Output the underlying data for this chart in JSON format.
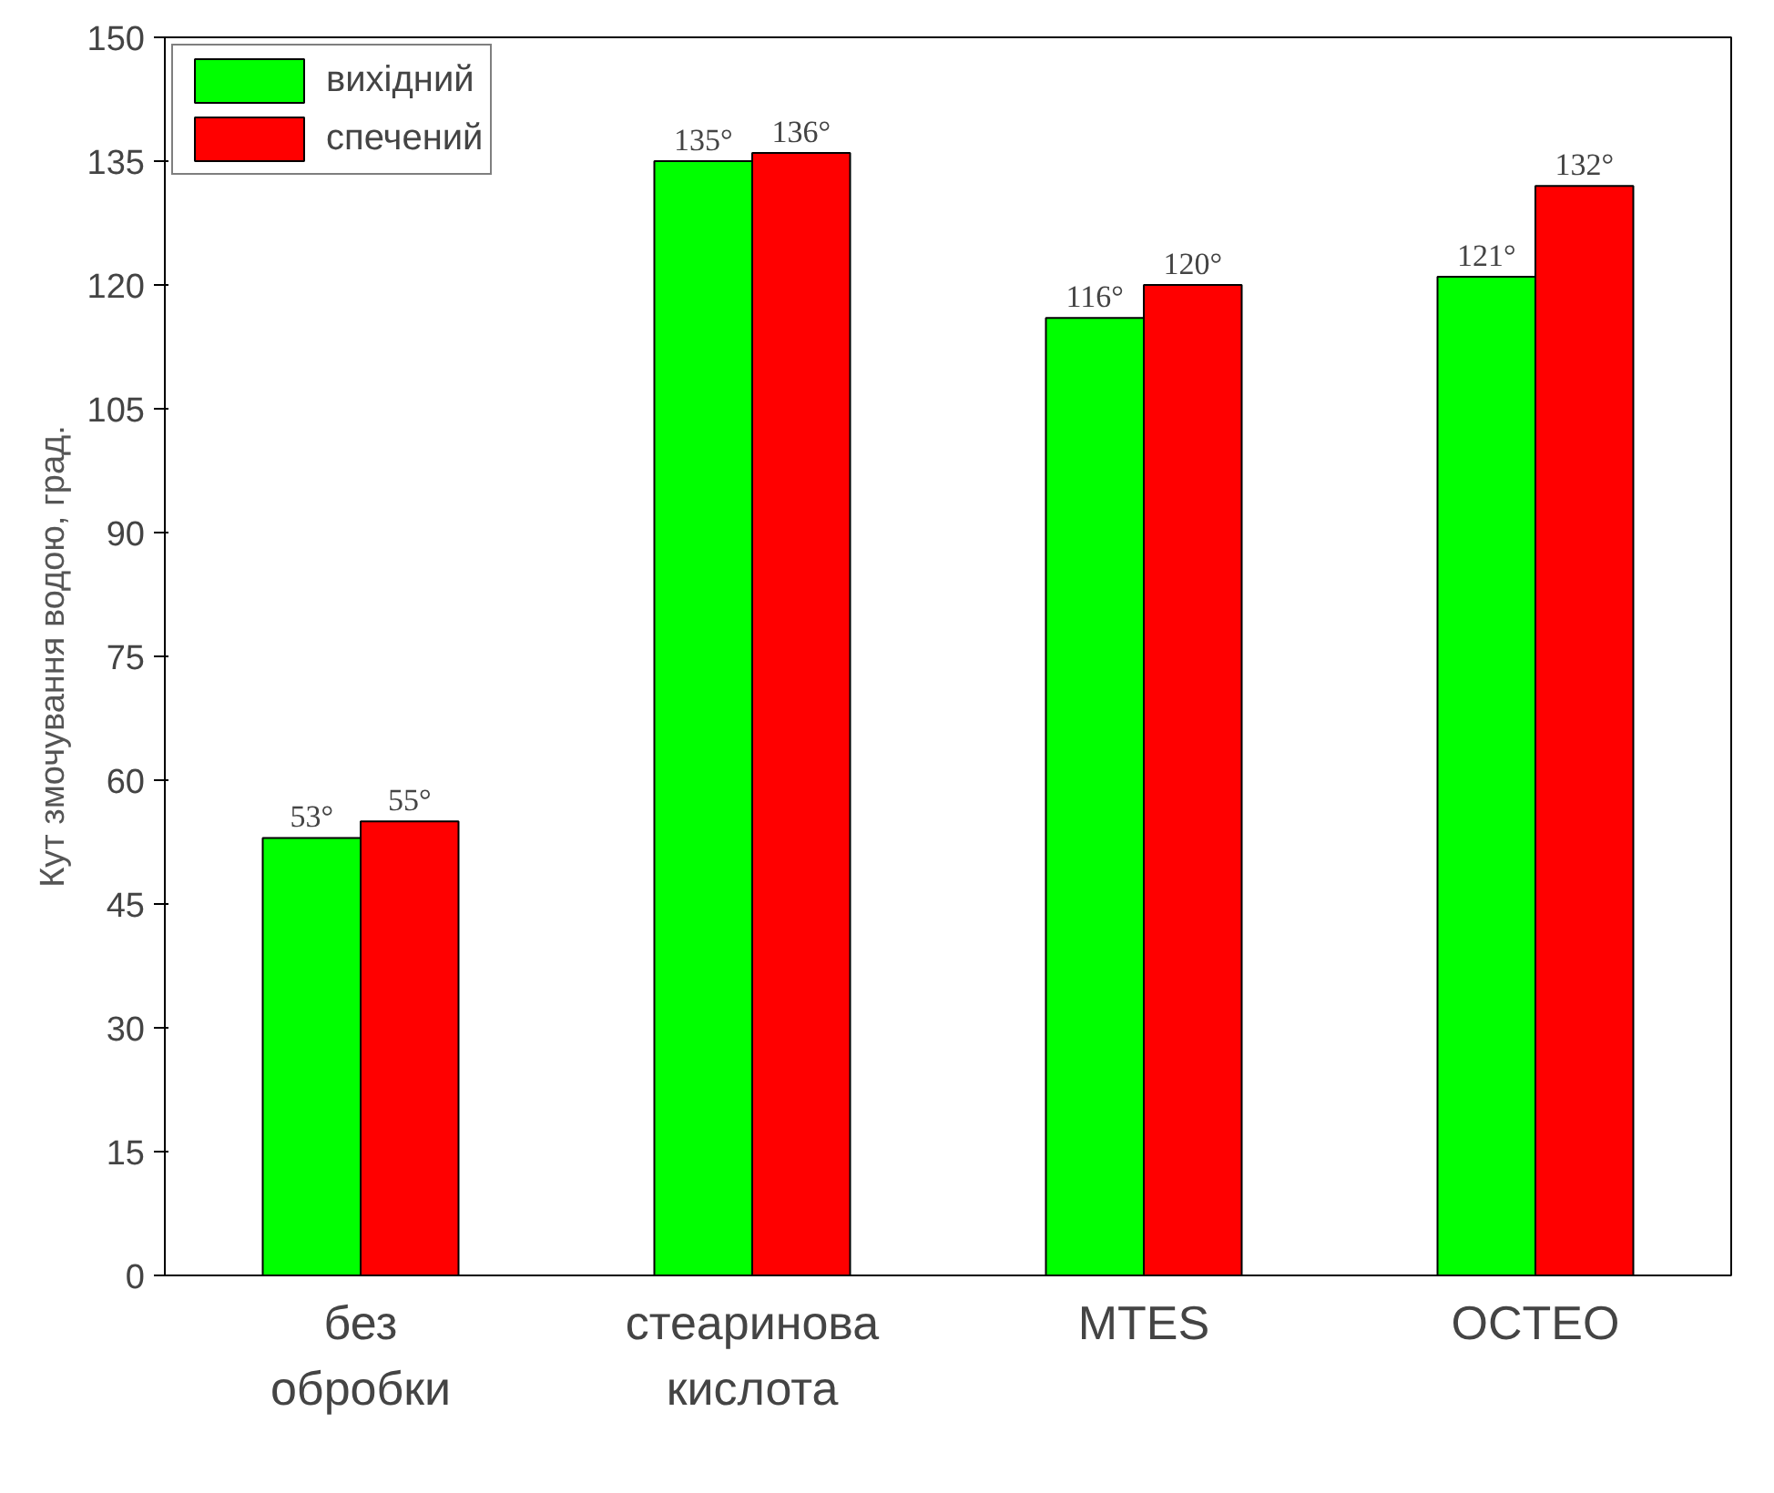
{
  "chart_data": {
    "type": "bar",
    "categories": [
      "без обробки",
      "стеаринова кислота",
      "MTES",
      "OCTEO"
    ],
    "ylabel": "Кут змочування водою, град.",
    "ylim": [
      0,
      150
    ],
    "yticks": [
      0,
      15,
      30,
      45,
      60,
      75,
      90,
      105,
      120,
      135,
      150
    ],
    "series": [
      {
        "name": "вихідний",
        "color": "#00ff00",
        "values": [
          53,
          135,
          116,
          121
        ],
        "value_labels": [
          "53°",
          "135°",
          "116°",
          "121°"
        ]
      },
      {
        "name": "спечений",
        "color": "#ff0000",
        "values": [
          55,
          136,
          120,
          132
        ],
        "value_labels": [
          "55°",
          "136°",
          "120°",
          "132°"
        ]
      }
    ],
    "legend": "top left",
    "grid": false
  }
}
